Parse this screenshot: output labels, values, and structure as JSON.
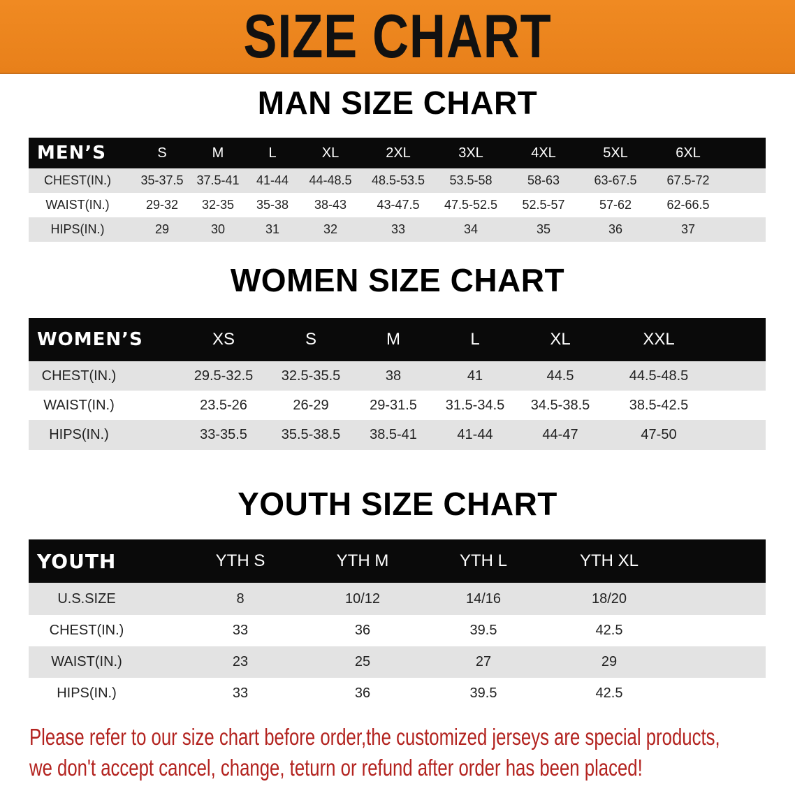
{
  "banner": {
    "title": "SIZE CHART",
    "color": "#ec841e"
  },
  "men": {
    "title": "MAN SIZE CHART",
    "header": "MEN’S",
    "sizes": [
      "S",
      "M",
      "L",
      "XL",
      "2XL",
      "3XL",
      "4XL",
      "5XL",
      "6XL"
    ],
    "rows": [
      {
        "label": "CHEST(IN.)",
        "values": [
          "35-37.5",
          "37.5-41",
          "41-44",
          "44-48.5",
          "48.5-53.5",
          "53.5-58",
          "58-63",
          "63-67.5",
          "67.5-72"
        ]
      },
      {
        "label": "WAIST(IN.)",
        "values": [
          "29-32",
          "32-35",
          "35-38",
          "38-43",
          "43-47.5",
          "47.5-52.5",
          "52.5-57",
          "57-62",
          "62-66.5"
        ]
      },
      {
        "label": "HIPS(IN.)",
        "values": [
          "29",
          "30",
          "31",
          "32",
          "33",
          "34",
          "35",
          "36",
          "37"
        ]
      }
    ]
  },
  "women": {
    "title": "WOMEN SIZE CHART",
    "header": "WOMEN’S",
    "sizes": [
      "XS",
      "S",
      "M",
      "L",
      "XL",
      "XXL"
    ],
    "rows": [
      {
        "label": "CHEST(IN.)",
        "values": [
          "29.5-32.5",
          "32.5-35.5",
          "38",
          "41",
          "44.5",
          "44.5-48.5"
        ]
      },
      {
        "label": "WAIST(IN.)",
        "values": [
          "23.5-26",
          "26-29",
          "29-31.5",
          "31.5-34.5",
          "34.5-38.5",
          "38.5-42.5"
        ]
      },
      {
        "label": "HIPS(IN.)",
        "values": [
          "33-35.5",
          "35.5-38.5",
          "38.5-41",
          "41-44",
          "44-47",
          "47-50"
        ]
      }
    ]
  },
  "youth": {
    "title": "YOUTH SIZE CHART",
    "header": "YOUTH",
    "sizes": [
      "YTH S",
      "YTH M",
      "YTH L",
      "YTH XL"
    ],
    "rows": [
      {
        "label": "U.S.SIZE",
        "values": [
          "8",
          "10/12",
          "14/16",
          "18/20"
        ]
      },
      {
        "label": "CHEST(IN.)",
        "values": [
          "33",
          "36",
          "39.5",
          "42.5"
        ]
      },
      {
        "label": "WAIST(IN.)",
        "values": [
          "23",
          "25",
          "27",
          "29"
        ]
      },
      {
        "label": "HIPS(IN.)",
        "values": [
          "33",
          "36",
          "39.5",
          "42.5"
        ]
      }
    ]
  },
  "notice": {
    "line1": "Please refer to our size chart before order,the customized jerseys are special products,",
    "line2": "we don't accept cancel, change, teturn or refund after order has been placed!",
    "color": "#b3231f"
  }
}
